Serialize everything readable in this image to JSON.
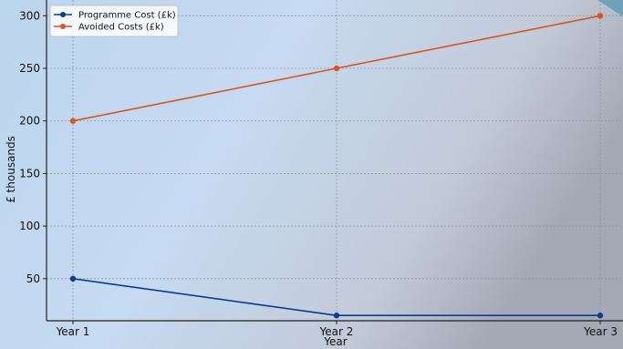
{
  "chart_data": {
    "type": "line",
    "categories": [
      "Year 1",
      "Year 2",
      "Year 3"
    ],
    "series": [
      {
        "name": "Programme Cost (£k)",
        "values": [
          50,
          15,
          15
        ],
        "color": "#0b3d91"
      },
      {
        "name": "Avoided Costs (£k)",
        "values": [
          200,
          250,
          300
        ],
        "color": "#d9541e"
      }
    ],
    "xlabel": "Year",
    "ylabel": "£ thousands",
    "ylim": [
      10,
      315
    ],
    "yticks": [
      50,
      100,
      150,
      200,
      250,
      300
    ],
    "grid": true,
    "legend": "top-left"
  }
}
